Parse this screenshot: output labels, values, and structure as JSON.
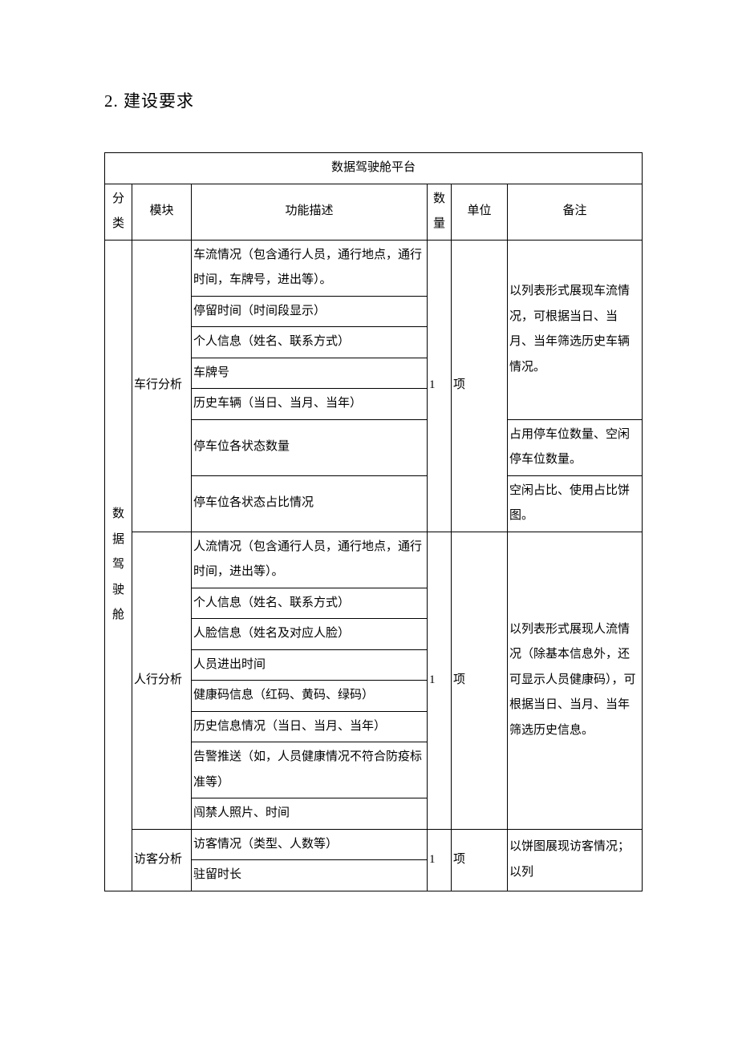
{
  "heading": "2. 建设要求",
  "table": {
    "title": "数据驾驶舱平台",
    "headers": {
      "category": "分类",
      "module": "模块",
      "desc": "功能描述",
      "qty": "数量",
      "unit": "单位",
      "note": "备注"
    },
    "category_label": "数据驾驶舱",
    "modules": [
      {
        "name": "车行分析",
        "qty": "1",
        "unit": "项",
        "descs": [
          "车流情况（包含通行人员，通行地点，通行时间，车牌号，进出等）。",
          "停留时间（时间段显示）",
          "个人信息（姓名、联系方式）",
          "车牌号",
          "历史车辆（当日、当月、当年）",
          "停车位各状态数量",
          "停车位各状态占比情况"
        ],
        "notes": [
          "以列表形式展现车流情况，可根据当日、当月、当年筛选历史车辆情况。",
          "占用停车位数量、空闲停车位数量。",
          "空闲占比、使用占比饼图。"
        ]
      },
      {
        "name": "人行分析",
        "qty": "1",
        "unit": "项",
        "descs": [
          "人流情况（包含通行人员，通行地点，通行时间，进出等）。",
          "个人信息（姓名、联系方式）",
          "人脸信息（姓名及对应人脸）",
          "人员进出时间",
          "健康码信息（红码、黄码、绿码）",
          "历史信息情况（当日、当月、当年）",
          "告警推送（如，人员健康情况不符合防疫标准等）",
          "闯禁人照片、时间"
        ],
        "notes": [
          "以列表形式展现人流情况（除基本信息外，还可显示人员健康码），可根据当日、当月、当年筛选历史信息。"
        ]
      },
      {
        "name": "访客分析",
        "qty": "1",
        "unit": "项",
        "descs": [
          "访客情况（类型、人数等）",
          "驻留时长"
        ],
        "notes": [
          "以饼图展现访客情况；以列"
        ]
      }
    ]
  }
}
